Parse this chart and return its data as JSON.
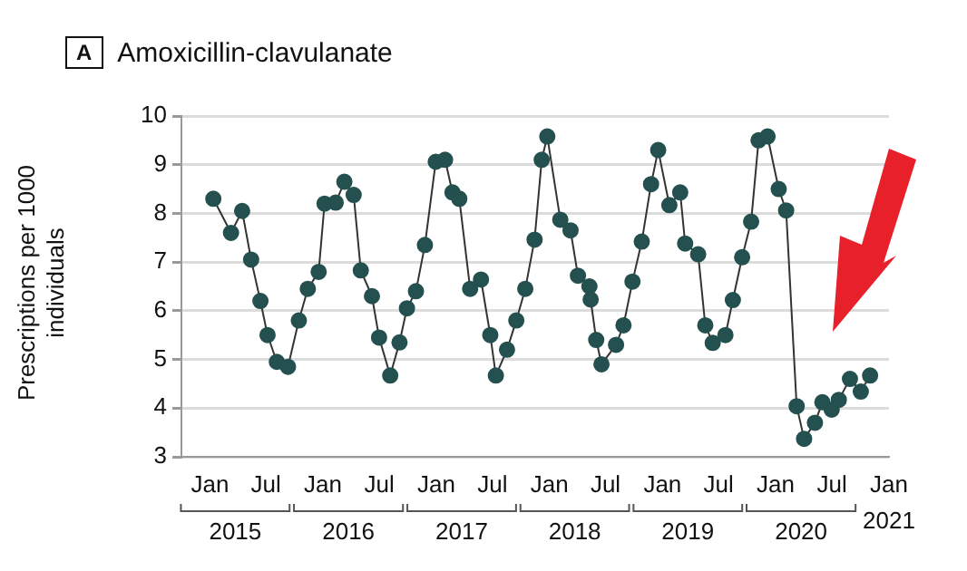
{
  "chart_data": {
    "type": "line",
    "title": "Amoxicillin-clavulanate",
    "ylabel": "Prescriptions per 1000 individuals",
    "annotations": [
      "A",
      "2015",
      "2016",
      "2017",
      "2018",
      "2019",
      "2020",
      "2021"
    ],
    "x": [
      "2015-01-12",
      "2015-03-10",
      "2015-04-15",
      "2015-05-14",
      "2015-06-13",
      "2015-07-06",
      "2015-08-05",
      "2015-09-10",
      "2015-10-15",
      "2015-11-13",
      "2015-12-18",
      "2016-01-06",
      "2016-02-11",
      "2016-03-10",
      "2016-04-09",
      "2016-05-02",
      "2016-06-07",
      "2016-06-30",
      "2016-08-05",
      "2016-09-04",
      "2016-09-28",
      "2016-10-27",
      "2016-11-25",
      "2016-12-30",
      "2017-01-29",
      "2017-02-22",
      "2017-03-16",
      "2017-04-20",
      "2017-05-25",
      "2017-06-24",
      "2017-07-12",
      "2017-08-17",
      "2017-09-16",
      "2017-10-15",
      "2017-11-14",
      "2017-12-07",
      "2017-12-25",
      "2018-02-05",
      "2018-03-10",
      "2018-04-03",
      "2018-05-10",
      "2018-05-14",
      "2018-06-01",
      "2018-06-18",
      "2018-08-04",
      "2018-08-28",
      "2018-09-26",
      "2018-10-26",
      "2018-11-25",
      "2018-12-18",
      "2019-01-23",
      "2019-02-27",
      "2019-03-15",
      "2019-04-26",
      "2019-05-19",
      "2019-06-12",
      "2019-07-23",
      "2019-08-16",
      "2019-09-15",
      "2019-10-14",
      "2019-11-07",
      "2019-12-06",
      "2020-01-11",
      "2020-02-04",
      "2020-03-09",
      "2020-04-02",
      "2020-05-07",
      "2020-05-31",
      "2020-06-30",
      "2020-07-23",
      "2020-08-28",
      "2020-10-02",
      "2020-11-01"
    ],
    "series": [
      {
        "color": "#24504f",
        "values": [
          8.3,
          7.6,
          8.05,
          7.05,
          6.2,
          5.5,
          4.95,
          4.85,
          5.8,
          6.45,
          6.8,
          8.2,
          8.22,
          8.65,
          8.38,
          6.83,
          6.3,
          5.45,
          4.67,
          5.35,
          6.05,
          6.4,
          7.35,
          9.06,
          9.1,
          8.43,
          8.3,
          6.45,
          6.64,
          5.5,
          4.67,
          5.2,
          5.8,
          6.45,
          7.46,
          9.1,
          9.58,
          7.87,
          7.65,
          6.72,
          6.5,
          6.23,
          5.4,
          4.9,
          5.3,
          5.7,
          6.6,
          7.42,
          8.6,
          9.3,
          8.17,
          8.43,
          7.38,
          7.16,
          5.7,
          5.34,
          5.5,
          6.22,
          7.1,
          7.83,
          9.5,
          9.58,
          8.5,
          8.06,
          4.04,
          3.37,
          3.7,
          4.12,
          3.97,
          4.17,
          4.6,
          4.34,
          4.67
        ]
      }
    ],
    "xlim": [
      "2014-10",
      "2021-01"
    ],
    "xticks": [
      {
        "value": "2015-01",
        "label": "Jan"
      },
      {
        "value": "2015-07",
        "label": "Jul"
      },
      {
        "value": "2016-01",
        "label": "Jan"
      },
      {
        "value": "2016-07",
        "label": "Jul"
      },
      {
        "value": "2017-01",
        "label": "Jan"
      },
      {
        "value": "2017-07",
        "label": "Jul"
      },
      {
        "value": "2018-01",
        "label": "Jan"
      },
      {
        "value": "2018-07",
        "label": "Jul"
      },
      {
        "value": "2019-01",
        "label": "Jan"
      },
      {
        "value": "2019-07",
        "label": "Jul"
      },
      {
        "value": "2020-01",
        "label": "Jan"
      },
      {
        "value": "2020-07",
        "label": "Jul"
      },
      {
        "value": "2021-01",
        "label": "Jan"
      }
    ],
    "ylim": [
      3,
      10
    ],
    "yticks": [
      3,
      4,
      5,
      6,
      7,
      8,
      9,
      10
    ],
    "grid": "y",
    "legend": false,
    "marker": "circle",
    "line_style": "solid"
  }
}
